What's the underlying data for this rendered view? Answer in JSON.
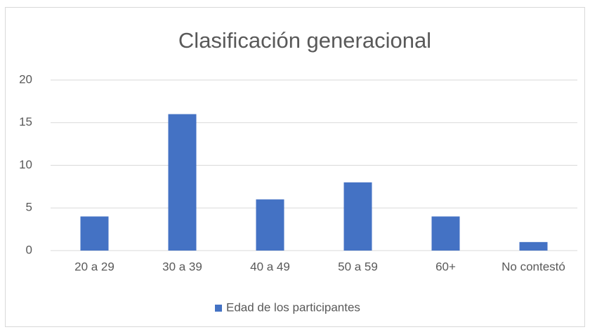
{
  "chart_data": {
    "type": "bar",
    "title": "Clasificación generacional",
    "categories": [
      "20 a 29",
      "30 a 39",
      "40 a 49",
      "50 a 59",
      "60+",
      "No contestó"
    ],
    "series": [
      {
        "name": "Edad de los participantes",
        "color": "#4472c4",
        "values": [
          4,
          16,
          6,
          8,
          4,
          1
        ]
      }
    ],
    "ylim": [
      0,
      20
    ],
    "yticks": [
      0,
      5,
      10,
      15,
      20
    ],
    "grid": true,
    "legend": "bottom"
  }
}
